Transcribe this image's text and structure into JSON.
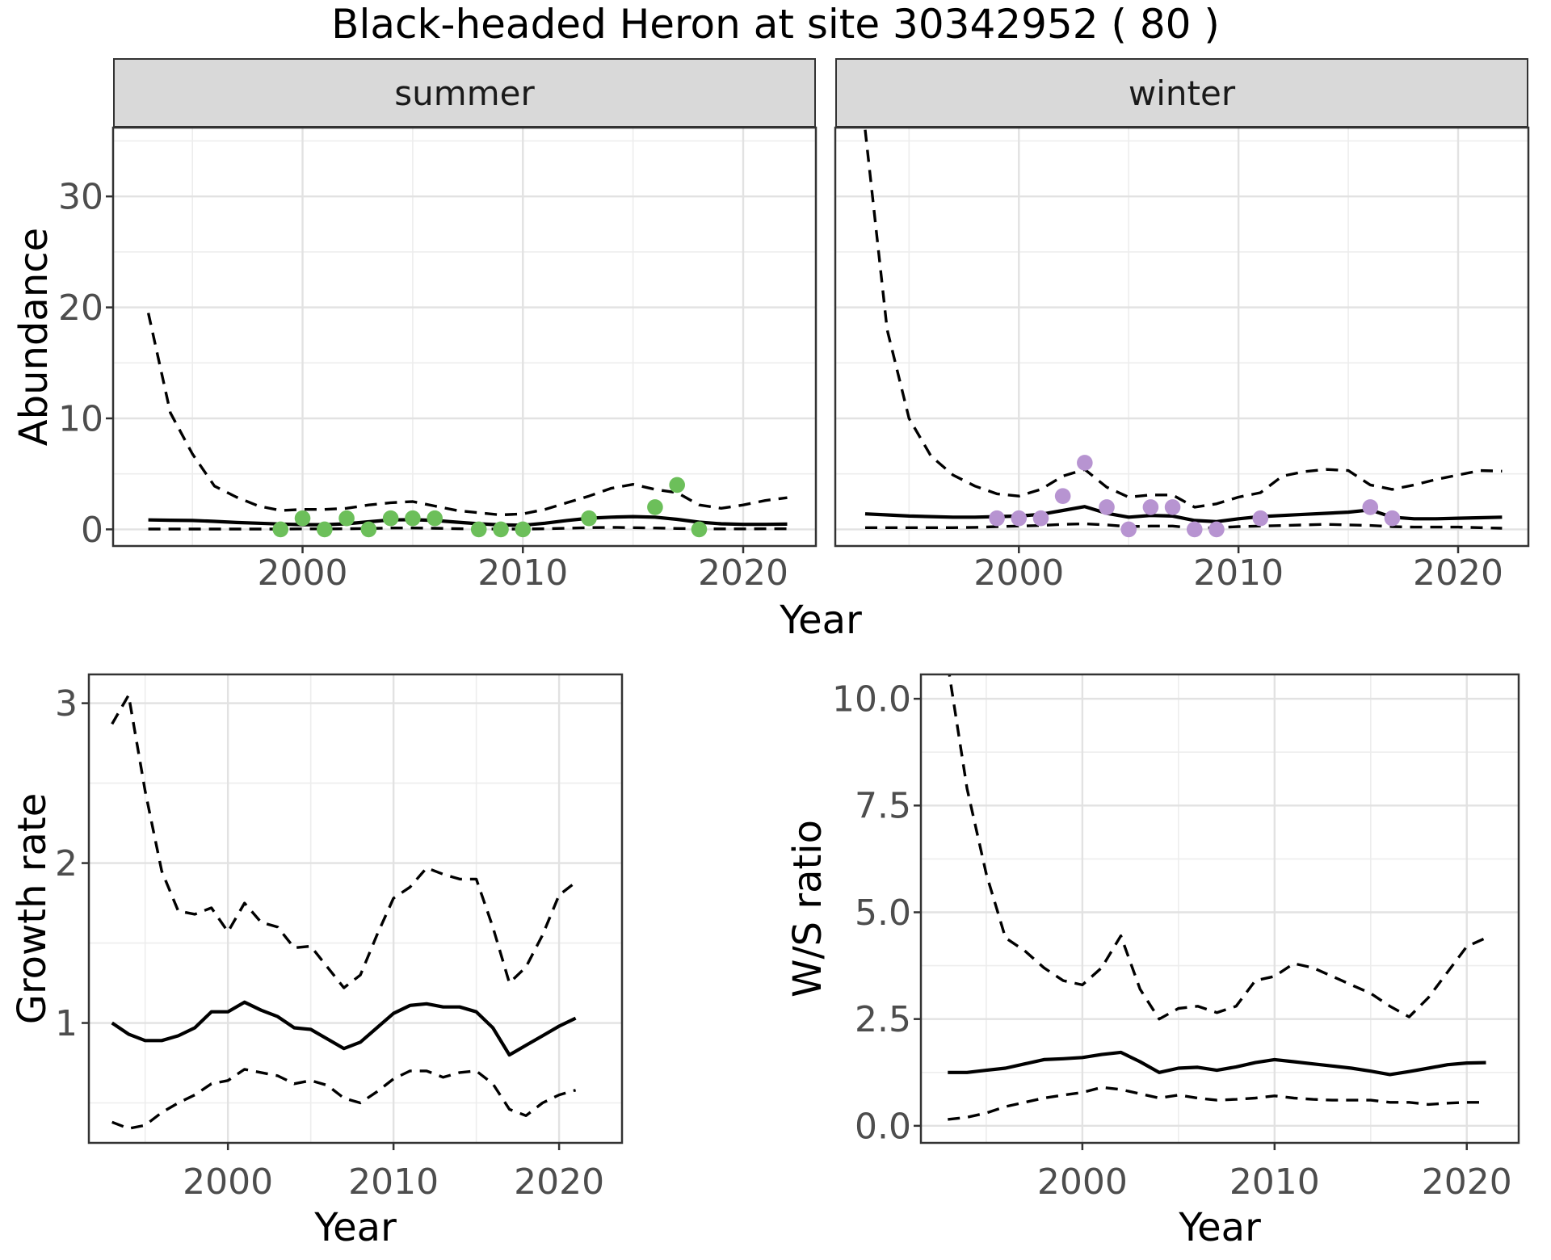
{
  "title": "Black-headed Heron at site 30342952 ( 80 )",
  "colors": {
    "summer_point": "#6CBF5A",
    "winter_point": "#B794D1",
    "line": "#000000",
    "strip_bg": "#D9D9D9",
    "tick_text": "#4D4D4D",
    "grid_major": "#E2E2E2",
    "grid_minor": "#EDEDED",
    "panel_border": "#333333"
  },
  "chart_data": [
    {
      "id": "abundance-summer",
      "type": "line",
      "facet_label": "summer",
      "xlabel": "Year",
      "ylabel": "Abundance",
      "xlim": [
        1991.4,
        2023.3
      ],
      "ylim": [
        -1.5,
        36.2
      ],
      "x_ticks": {
        "values": [
          2000,
          2010,
          2020
        ],
        "labels": [
          "2000",
          "2010",
          "2020"
        ]
      },
      "x_minor": [
        1995,
        2005,
        2015
      ],
      "y_ticks": {
        "values": [
          0,
          10,
          20,
          30
        ],
        "labels": [
          "0",
          "10",
          "20",
          "30"
        ]
      },
      "y_minor": [
        5,
        15,
        25,
        35
      ],
      "years": [
        1993,
        1994,
        1995,
        1996,
        1997,
        1998,
        1999,
        2000,
        2001,
        2002,
        2003,
        2004,
        2005,
        2006,
        2007,
        2008,
        2009,
        2010,
        2011,
        2012,
        2013,
        2014,
        2015,
        2016,
        2017,
        2018,
        2019,
        2020,
        2021,
        2022
      ],
      "series": [
        {
          "name": "upper-ci",
          "style": "dashed",
          "values": [
            19.5,
            10.5,
            6.8,
            3.9,
            2.9,
            2.1,
            1.7,
            1.8,
            1.8,
            1.9,
            2.2,
            2.4,
            2.5,
            2.1,
            1.7,
            1.5,
            1.3,
            1.4,
            1.8,
            2.4,
            3.0,
            3.7,
            4.05,
            3.6,
            3.3,
            2.2,
            1.9,
            2.2,
            2.6,
            2.85
          ]
        },
        {
          "name": "median",
          "style": "solid",
          "values": [
            0.85,
            0.82,
            0.8,
            0.72,
            0.62,
            0.55,
            0.48,
            0.42,
            0.42,
            0.5,
            0.68,
            0.85,
            0.87,
            0.8,
            0.65,
            0.5,
            0.4,
            0.37,
            0.55,
            0.8,
            1.0,
            1.1,
            1.15,
            1.1,
            0.9,
            0.65,
            0.5,
            0.45,
            0.45,
            0.47
          ]
        },
        {
          "name": "lower-ci",
          "style": "dashed",
          "values": [
            0.03,
            0.03,
            0.03,
            0.03,
            0.03,
            0.03,
            0.03,
            0.04,
            0.04,
            0.05,
            0.08,
            0.12,
            0.12,
            0.1,
            0.06,
            0.04,
            0.03,
            0.03,
            0.05,
            0.1,
            0.15,
            0.18,
            0.15,
            0.12,
            0.08,
            0.05,
            0.04,
            0.04,
            0.05,
            0.05
          ]
        }
      ],
      "points": {
        "color_key": "summer_point",
        "x": [
          1999,
          2000,
          2001,
          2002,
          2003,
          2004,
          2005,
          2006,
          2008,
          2009,
          2010,
          2013,
          2016,
          2017,
          2018
        ],
        "y": [
          0,
          1,
          0,
          1,
          0,
          1,
          1,
          1,
          0,
          0,
          0,
          1,
          2,
          4,
          0
        ]
      }
    },
    {
      "id": "abundance-winter",
      "type": "line",
      "facet_label": "winter",
      "xlabel": "Year",
      "ylabel": "Abundance",
      "xlim": [
        1991.64,
        2023.2
      ],
      "ylim": [
        -1.5,
        36.2
      ],
      "x_ticks": {
        "values": [
          2000,
          2010,
          2020
        ],
        "labels": [
          "2000",
          "2010",
          "2020"
        ]
      },
      "x_minor": [
        1995,
        2005,
        2015
      ],
      "y_ticks": {
        "values": [
          0,
          10,
          20,
          30
        ],
        "labels": [
          "0",
          "10",
          "20",
          "30"
        ]
      },
      "y_minor": [
        5,
        15,
        25,
        35
      ],
      "years": [
        1993,
        1994,
        1995,
        1996,
        1997,
        1998,
        1999,
        2000,
        2001,
        2002,
        2003,
        2004,
        2005,
        2006,
        2007,
        2008,
        2009,
        2010,
        2011,
        2012,
        2013,
        2014,
        2015,
        2016,
        2017,
        2018,
        2019,
        2020,
        2021,
        2022
      ],
      "series": [
        {
          "name": "upper-ci",
          "style": "dashed",
          "values": [
            36,
            18,
            10,
            6.6,
            4.9,
            3.9,
            3.2,
            3.0,
            3.6,
            4.8,
            5.4,
            3.8,
            2.9,
            3.1,
            3.1,
            2.0,
            2.3,
            2.9,
            3.3,
            4.8,
            5.2,
            5.4,
            5.3,
            4.0,
            3.6,
            4.0,
            4.5,
            4.9,
            5.3,
            5.25
          ]
        },
        {
          "name": "median",
          "style": "solid",
          "values": [
            1.4,
            1.3,
            1.2,
            1.15,
            1.1,
            1.1,
            1.15,
            1.2,
            1.35,
            1.7,
            2.05,
            1.45,
            1.1,
            1.25,
            1.2,
            0.8,
            0.7,
            0.95,
            1.15,
            1.25,
            1.35,
            1.45,
            1.55,
            1.75,
            1.1,
            0.95,
            0.95,
            1.0,
            1.05,
            1.1
          ]
        },
        {
          "name": "lower-ci",
          "style": "dashed",
          "values": [
            0.15,
            0.15,
            0.15,
            0.15,
            0.15,
            0.18,
            0.25,
            0.3,
            0.35,
            0.45,
            0.5,
            0.4,
            0.25,
            0.3,
            0.3,
            0.1,
            0.15,
            0.25,
            0.3,
            0.35,
            0.4,
            0.45,
            0.4,
            0.35,
            0.25,
            0.2,
            0.2,
            0.2,
            0.15,
            0.1
          ]
        }
      ],
      "points": {
        "color_key": "winter_point",
        "x": [
          1999,
          2000,
          2001,
          2002,
          2003,
          2004,
          2005,
          2006,
          2007,
          2008,
          2009,
          2011,
          2016,
          2017
        ],
        "y": [
          1,
          1,
          1,
          3,
          6,
          2,
          0,
          2,
          2,
          0,
          0,
          1,
          2,
          1
        ]
      }
    },
    {
      "id": "growth-rate",
      "type": "line",
      "facet_label": "",
      "xlabel": "Year",
      "ylabel": "Growth rate",
      "xlim": [
        1991.6,
        2023.8
      ],
      "ylim": [
        0.25,
        3.18
      ],
      "x_ticks": {
        "values": [
          2000,
          2010,
          2020
        ],
        "labels": [
          "2000",
          "2010",
          "2020"
        ]
      },
      "x_minor": [
        1995,
        2005,
        2015
      ],
      "y_ticks": {
        "values": [
          1,
          2,
          3
        ],
        "labels": [
          "1",
          "2",
          "3"
        ]
      },
      "y_minor": [
        0.5,
        1.5,
        2.5
      ],
      "years": [
        1993,
        1994,
        1995,
        1996,
        1997,
        1998,
        1999,
        2000,
        2001,
        2002,
        2003,
        2004,
        2005,
        2006,
        2007,
        2008,
        2009,
        2010,
        2011,
        2012,
        2013,
        2014,
        2015,
        2016,
        2017,
        2018,
        2019,
        2020,
        2021
      ],
      "series": [
        {
          "name": "upper-ci",
          "style": "dashed",
          "values": [
            2.87,
            3.05,
            2.45,
            1.95,
            1.7,
            1.68,
            1.72,
            1.57,
            1.75,
            1.63,
            1.6,
            1.47,
            1.48,
            1.35,
            1.22,
            1.3,
            1.55,
            1.78,
            1.85,
            1.97,
            1.93,
            1.9,
            1.9,
            1.6,
            1.25,
            1.35,
            1.55,
            1.8,
            1.88
          ]
        },
        {
          "name": "median",
          "style": "solid",
          "values": [
            1.0,
            0.93,
            0.89,
            0.89,
            0.92,
            0.97,
            1.07,
            1.07,
            1.13,
            1.08,
            1.04,
            0.97,
            0.96,
            0.9,
            0.84,
            0.88,
            0.97,
            1.06,
            1.11,
            1.12,
            1.1,
            1.1,
            1.07,
            0.97,
            0.8,
            0.86,
            0.92,
            0.98,
            1.03
          ]
        },
        {
          "name": "lower-ci",
          "style": "dashed",
          "values": [
            0.38,
            0.34,
            0.36,
            0.44,
            0.5,
            0.55,
            0.62,
            0.64,
            0.71,
            0.69,
            0.67,
            0.62,
            0.64,
            0.61,
            0.53,
            0.5,
            0.57,
            0.65,
            0.7,
            0.7,
            0.66,
            0.69,
            0.7,
            0.62,
            0.46,
            0.42,
            0.5,
            0.55,
            0.58
          ]
        }
      ]
    },
    {
      "id": "ws-ratio",
      "type": "line",
      "facet_label": "",
      "xlabel": "Year",
      "ylabel": "W/S ratio",
      "xlim": [
        1991.6,
        2022.7
      ],
      "ylim": [
        -0.4,
        10.57
      ],
      "x_ticks": {
        "values": [
          2000,
          2010,
          2020
        ],
        "labels": [
          "2000",
          "2010",
          "2020"
        ]
      },
      "x_minor": [
        1995,
        2005,
        2015
      ],
      "y_ticks": {
        "values": [
          0,
          2.5,
          5,
          7.5,
          10
        ],
        "labels": [
          "0.0",
          "2.5",
          "5.0",
          "7.5",
          "10.0"
        ]
      },
      "y_minor": [
        1.25,
        3.75,
        6.25,
        8.75
      ],
      "years": [
        1993,
        1994,
        1995,
        1996,
        1997,
        1998,
        1999,
        2000,
        2001,
        2002,
        2003,
        2004,
        2005,
        2006,
        2007,
        2008,
        2009,
        2010,
        2011,
        2012,
        2013,
        2014,
        2015,
        2016,
        2017,
        2018,
        2019,
        2020,
        2021
      ],
      "series": [
        {
          "name": "upper-ci",
          "style": "dashed",
          "values": [
            10.8,
            7.9,
            5.9,
            4.4,
            4.1,
            3.7,
            3.4,
            3.3,
            3.7,
            4.45,
            3.2,
            2.5,
            2.75,
            2.8,
            2.65,
            2.8,
            3.4,
            3.5,
            3.8,
            3.7,
            3.5,
            3.3,
            3.1,
            2.8,
            2.55,
            3.0,
            3.6,
            4.2,
            4.4
          ]
        },
        {
          "name": "median",
          "style": "solid",
          "values": [
            1.25,
            1.25,
            1.3,
            1.35,
            1.45,
            1.55,
            1.57,
            1.6,
            1.67,
            1.72,
            1.5,
            1.25,
            1.35,
            1.37,
            1.3,
            1.38,
            1.48,
            1.55,
            1.5,
            1.45,
            1.4,
            1.35,
            1.28,
            1.2,
            1.27,
            1.35,
            1.43,
            1.47,
            1.48
          ]
        },
        {
          "name": "lower-ci",
          "style": "dashed",
          "values": [
            0.15,
            0.2,
            0.3,
            0.45,
            0.55,
            0.65,
            0.72,
            0.78,
            0.9,
            0.85,
            0.75,
            0.65,
            0.72,
            0.65,
            0.6,
            0.62,
            0.65,
            0.7,
            0.65,
            0.62,
            0.6,
            0.6,
            0.6,
            0.55,
            0.55,
            0.5,
            0.53,
            0.55,
            0.55
          ]
        }
      ]
    }
  ]
}
